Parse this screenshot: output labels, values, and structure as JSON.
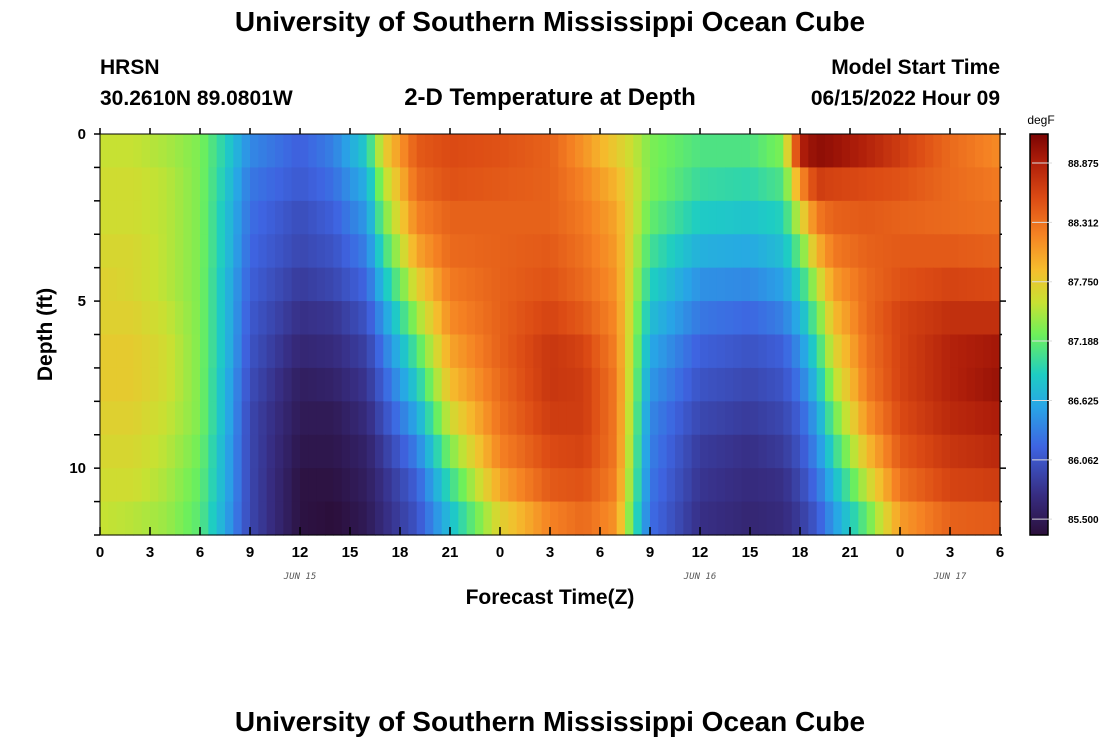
{
  "header": {
    "title": "University of Southern Mississippi Ocean Cube",
    "station": "HRSN",
    "coords": "30.2610N  89.0801W",
    "subtitle": "2-D Temperature at Depth",
    "model_start_label": "Model Start Time",
    "model_start_value": "06/15/2022 Hour 09"
  },
  "footer": {
    "title": "University of Southern Mississippi Ocean Cube"
  },
  "colors": {
    "min": "#2b0f3a",
    "max": "#7a0403"
  },
  "chart_data": {
    "type": "heatmap",
    "xlabel": "Forecast Time(Z)",
    "ylabel": "Depth (ft)",
    "x_range_hours": [
      0,
      54
    ],
    "y_range_ft": [
      0,
      12
    ],
    "y_inverted": true,
    "x_tick_labels": [
      "0",
      "3",
      "6",
      "9",
      "12",
      "15",
      "18",
      "21",
      "0",
      "3",
      "6",
      "9",
      "12",
      "15",
      "18",
      "21",
      "0",
      "3",
      "6"
    ],
    "x_tick_hours": [
      0,
      3,
      6,
      9,
      12,
      15,
      18,
      21,
      24,
      27,
      30,
      33,
      36,
      39,
      42,
      45,
      48,
      51,
      54
    ],
    "date_labels": [
      {
        "text": "JUN 15",
        "hour": 12
      },
      {
        "text": "JUN 16",
        "hour": 36
      },
      {
        "text": "JUN 17",
        "hour": 51
      }
    ],
    "y_ticks": [
      0,
      5,
      10
    ],
    "colorbar": {
      "unit": "degF",
      "labels": [
        "88.875",
        "88.312",
        "87.750",
        "87.188",
        "86.625",
        "86.062",
        "85.500"
      ],
      "label_values": [
        88.875,
        88.312,
        87.75,
        87.188,
        86.625,
        86.062,
        85.5
      ],
      "min": 85.35,
      "max": 89.15
    },
    "depth_rows_ft": [
      0.5,
      1.5,
      2.5,
      3.5,
      4.5,
      5.5,
      6.5,
      7.5,
      8.5,
      9.5,
      10.5,
      11.5
    ],
    "time_hours": [
      0,
      2,
      4,
      6,
      7.5,
      9,
      12,
      14,
      16,
      17,
      19,
      21,
      24,
      27,
      29,
      31,
      32,
      33,
      36,
      39,
      41,
      42,
      43,
      44,
      46,
      48,
      51,
      54
    ],
    "values_degF": [
      [
        87.55,
        87.55,
        87.45,
        87.3,
        86.9,
        86.4,
        86.15,
        86.35,
        86.85,
        87.7,
        88.45,
        88.55,
        88.5,
        88.4,
        88.1,
        87.75,
        87.55,
        87.3,
        87.1,
        87.1,
        87.3,
        88.85,
        89.05,
        89.0,
        88.85,
        88.65,
        88.35,
        88.15
      ],
      [
        87.6,
        87.6,
        87.5,
        87.3,
        86.85,
        86.3,
        86.1,
        86.25,
        86.65,
        87.45,
        88.35,
        88.5,
        88.45,
        88.4,
        88.2,
        87.9,
        87.6,
        87.3,
        87.0,
        86.95,
        87.1,
        88.1,
        88.65,
        88.6,
        88.55,
        88.5,
        88.35,
        88.25
      ],
      [
        87.6,
        87.6,
        87.5,
        87.3,
        86.8,
        86.25,
        86.0,
        86.15,
        86.5,
        87.25,
        88.2,
        88.4,
        88.4,
        88.4,
        88.25,
        88.0,
        87.6,
        87.2,
        86.85,
        86.8,
        86.9,
        87.6,
        88.25,
        88.4,
        88.45,
        88.4,
        88.35,
        88.3
      ],
      [
        87.65,
        87.65,
        87.5,
        87.3,
        86.8,
        86.2,
        85.95,
        86.05,
        86.35,
        87.0,
        88.0,
        88.35,
        88.4,
        88.45,
        88.3,
        88.05,
        87.55,
        87.05,
        86.65,
        86.6,
        86.75,
        87.2,
        87.9,
        88.25,
        88.4,
        88.45,
        88.45,
        88.4
      ],
      [
        87.7,
        87.65,
        87.5,
        87.3,
        86.75,
        86.15,
        85.85,
        85.95,
        86.2,
        86.75,
        87.7,
        88.25,
        88.4,
        88.5,
        88.35,
        88.1,
        87.5,
        86.9,
        86.45,
        86.4,
        86.55,
        86.9,
        87.5,
        88.05,
        88.35,
        88.5,
        88.6,
        88.55
      ],
      [
        87.7,
        87.7,
        87.55,
        87.3,
        86.75,
        86.1,
        85.75,
        85.8,
        86.05,
        86.5,
        87.4,
        88.15,
        88.4,
        88.6,
        88.45,
        88.15,
        87.45,
        86.75,
        86.3,
        86.2,
        86.35,
        86.65,
        87.2,
        87.85,
        88.35,
        88.6,
        88.75,
        88.75
      ],
      [
        87.75,
        87.75,
        87.6,
        87.3,
        86.75,
        86.05,
        85.65,
        85.7,
        85.9,
        86.3,
        87.1,
        88.0,
        88.4,
        88.7,
        88.6,
        88.2,
        87.4,
        86.6,
        86.15,
        86.05,
        86.15,
        86.45,
        86.95,
        87.65,
        88.3,
        88.6,
        88.85,
        88.95
      ],
      [
        87.75,
        87.75,
        87.6,
        87.3,
        86.7,
        86.0,
        85.55,
        85.6,
        85.8,
        86.15,
        86.85,
        87.85,
        88.35,
        88.7,
        88.65,
        88.25,
        87.35,
        86.5,
        86.05,
        85.95,
        86.05,
        86.3,
        86.75,
        87.45,
        88.25,
        88.6,
        88.85,
        89.0
      ],
      [
        87.7,
        87.7,
        87.55,
        87.3,
        86.7,
        85.95,
        85.5,
        85.5,
        85.7,
        86.0,
        86.6,
        87.6,
        88.3,
        88.65,
        88.65,
        88.25,
        87.3,
        86.4,
        85.95,
        85.85,
        85.95,
        86.15,
        86.55,
        87.2,
        88.1,
        88.55,
        88.8,
        88.9
      ],
      [
        87.65,
        87.65,
        87.5,
        87.25,
        86.65,
        85.95,
        85.45,
        85.45,
        85.6,
        85.85,
        86.35,
        87.3,
        88.2,
        88.55,
        88.6,
        88.25,
        87.25,
        86.35,
        85.85,
        85.75,
        85.85,
        86.05,
        86.4,
        86.95,
        87.85,
        88.45,
        88.7,
        88.8
      ],
      [
        87.6,
        87.6,
        87.45,
        87.2,
        86.65,
        85.95,
        85.4,
        85.4,
        85.55,
        85.75,
        86.15,
        87.0,
        88.0,
        88.45,
        88.5,
        88.2,
        87.2,
        86.3,
        85.8,
        85.7,
        85.75,
        85.95,
        86.25,
        86.7,
        87.55,
        88.3,
        88.6,
        88.65
      ],
      [
        87.55,
        87.5,
        87.4,
        87.15,
        86.6,
        85.95,
        85.4,
        85.35,
        85.5,
        85.7,
        86.05,
        86.75,
        87.7,
        88.2,
        88.35,
        88.1,
        87.1,
        86.25,
        85.75,
        85.65,
        85.7,
        85.85,
        86.1,
        86.5,
        87.2,
        88.05,
        88.4,
        88.45
      ]
    ]
  }
}
